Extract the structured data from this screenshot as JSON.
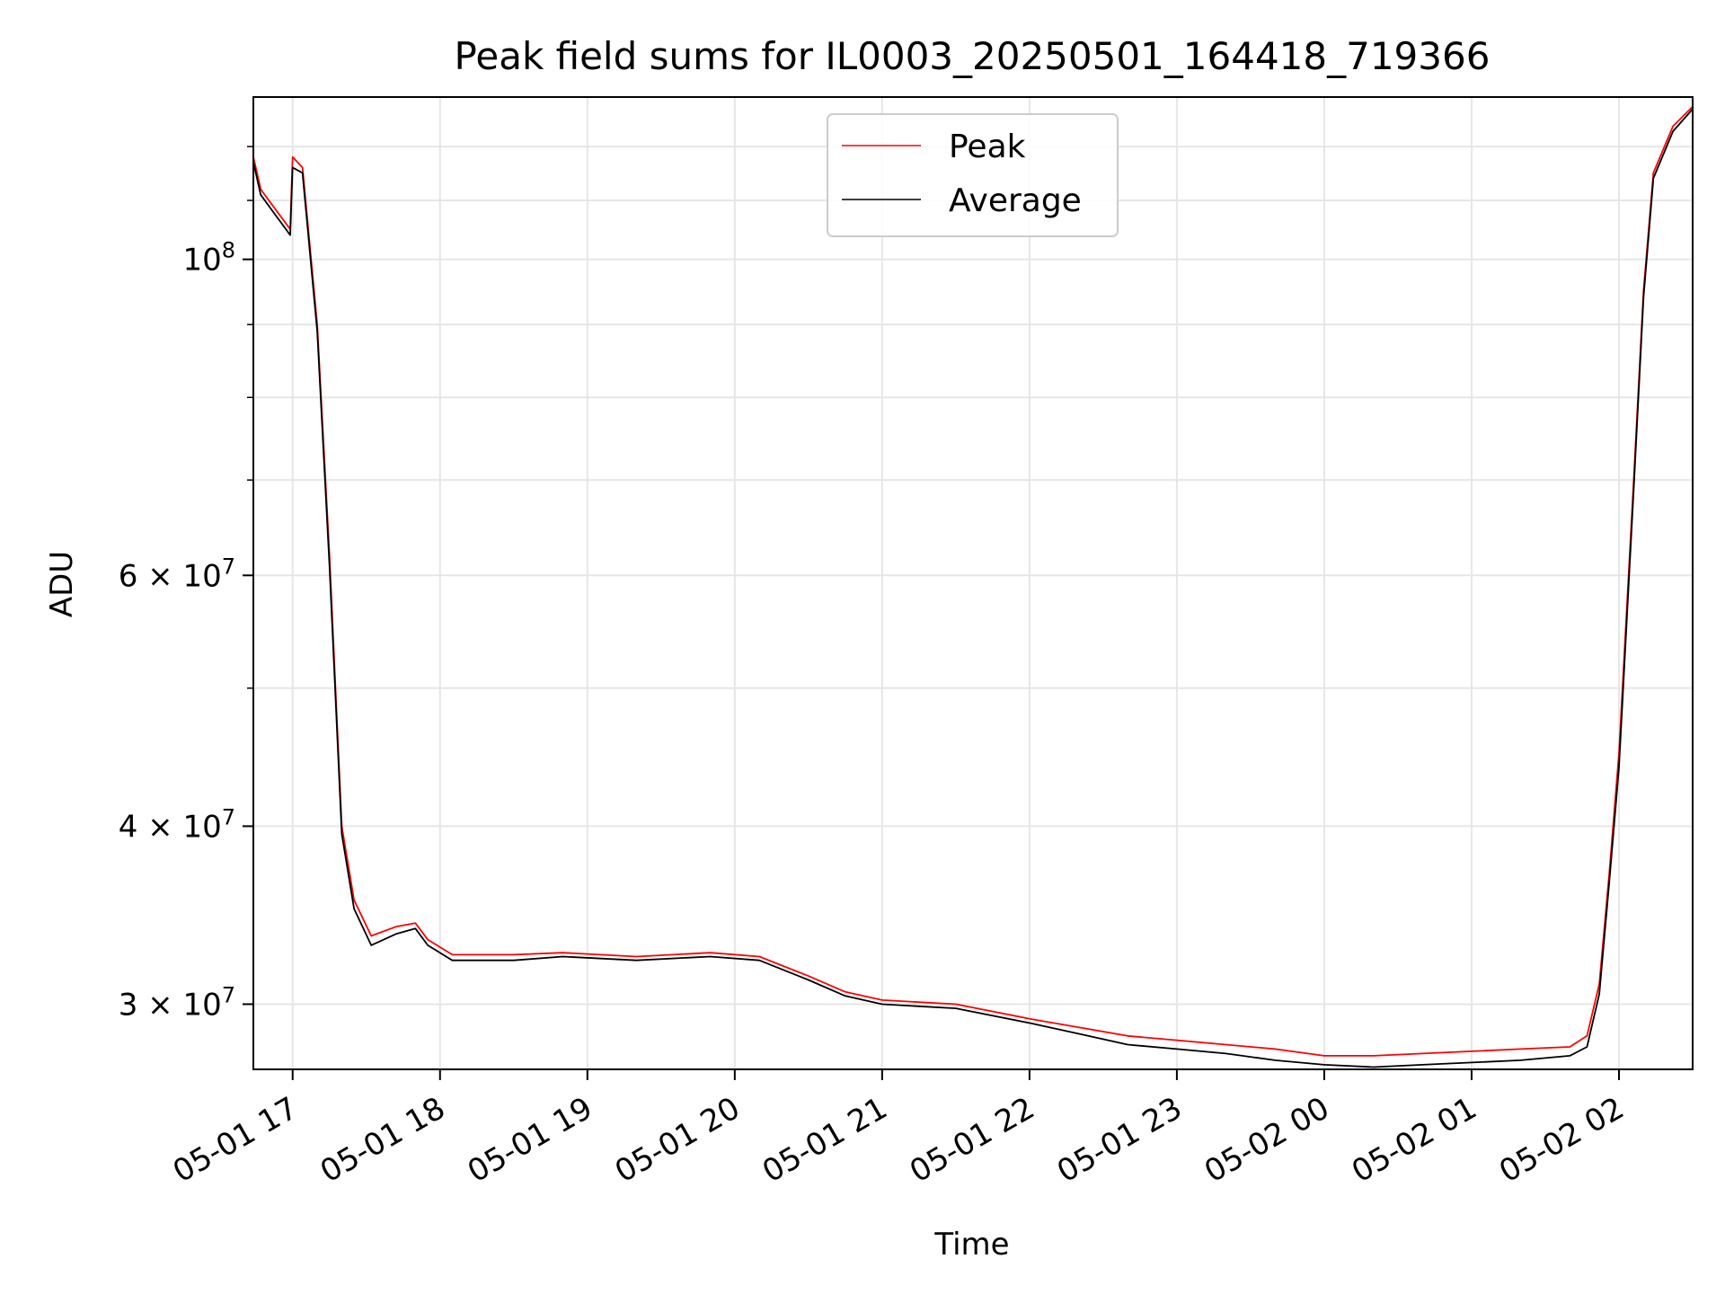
{
  "chart_data": {
    "type": "line",
    "title": "Peak field sums for IL0003_20250501_164418_719366",
    "xlabel": "Time",
    "ylabel": "ADU",
    "yscale": "log",
    "grid": true,
    "legend_position": "upper center",
    "x_ticks": [
      "05-01 17",
      "05-01 18",
      "05-01 19",
      "05-01 20",
      "05-01 21",
      "05-01 22",
      "05-01 23",
      "05-02 00",
      "05-02 01",
      "05-02 02"
    ],
    "y_ticks": [
      {
        "value": 30000000,
        "base": "3 × 10",
        "exp": "7"
      },
      {
        "value": 40000000,
        "base": "4 × 10",
        "exp": "7"
      },
      {
        "value": 60000000,
        "base": "6 × 10",
        "exp": "7"
      },
      {
        "value": 100000000,
        "base": "10",
        "exp": "8"
      }
    ],
    "xlim": [
      "2025-05-01 16:44",
      "2025-05-02 02:30"
    ],
    "ylim": [
      27000000,
      130000000
    ],
    "series": [
      {
        "name": "Peak",
        "color": "#ff0000",
        "points": [
          [
            "2025-05-01 16:44",
            118000000
          ],
          [
            "2025-05-01 16:47",
            112000000
          ],
          [
            "2025-05-01 16:52",
            109000000
          ],
          [
            "2025-05-01 16:59",
            105000000
          ],
          [
            "2025-05-01 17:00",
            118000000
          ],
          [
            "2025-05-01 17:04",
            116000000
          ],
          [
            "2025-05-01 17:10",
            90000000
          ],
          [
            "2025-05-01 17:15",
            62000000
          ],
          [
            "2025-05-01 17:20",
            40000000
          ],
          [
            "2025-05-01 17:25",
            35500000
          ],
          [
            "2025-05-01 17:32",
            33500000
          ],
          [
            "2025-05-01 17:42",
            34000000
          ],
          [
            "2025-05-01 17:50",
            34200000
          ],
          [
            "2025-05-01 17:55",
            33300000
          ],
          [
            "2025-05-01 18:05",
            32500000
          ],
          [
            "2025-05-01 18:30",
            32500000
          ],
          [
            "2025-05-01 18:50",
            32600000
          ],
          [
            "2025-05-01 19:20",
            32400000
          ],
          [
            "2025-05-01 19:50",
            32600000
          ],
          [
            "2025-05-01 20:10",
            32400000
          ],
          [
            "2025-05-01 20:30",
            31400000
          ],
          [
            "2025-05-01 20:45",
            30600000
          ],
          [
            "2025-05-01 21:00",
            30200000
          ],
          [
            "2025-05-01 21:30",
            30000000
          ],
          [
            "2025-05-01 22:00",
            29300000
          ],
          [
            "2025-05-01 22:20",
            28900000
          ],
          [
            "2025-05-01 22:40",
            28500000
          ],
          [
            "2025-05-01 23:00",
            28300000
          ],
          [
            "2025-05-01 23:20",
            28100000
          ],
          [
            "2025-05-01 23:40",
            27900000
          ],
          [
            "2025-05-02 00:00",
            27600000
          ],
          [
            "2025-05-02 00:20",
            27600000
          ],
          [
            "2025-05-02 00:40",
            27700000
          ],
          [
            "2025-05-02 01:00",
            27800000
          ],
          [
            "2025-05-02 01:20",
            27900000
          ],
          [
            "2025-05-02 01:40",
            28000000
          ],
          [
            "2025-05-02 01:47",
            28500000
          ],
          [
            "2025-05-02 01:52",
            31000000
          ],
          [
            "2025-05-02 01:56",
            37000000
          ],
          [
            "2025-05-02 02:00",
            45000000
          ],
          [
            "2025-05-02 02:06",
            70000000
          ],
          [
            "2025-05-02 02:10",
            95000000
          ],
          [
            "2025-05-02 02:14",
            115000000
          ],
          [
            "2025-05-02 02:22",
            124000000
          ],
          [
            "2025-05-02 02:30",
            128000000
          ]
        ]
      },
      {
        "name": "Average",
        "color": "#000000",
        "points": [
          [
            "2025-05-01 16:44",
            117000000
          ],
          [
            "2025-05-01 16:47",
            111000000
          ],
          [
            "2025-05-01 16:52",
            108000000
          ],
          [
            "2025-05-01 16:59",
            104000000
          ],
          [
            "2025-05-01 17:00",
            116000000
          ],
          [
            "2025-05-01 17:04",
            115000000
          ],
          [
            "2025-05-01 17:10",
            89000000
          ],
          [
            "2025-05-01 17:15",
            61000000
          ],
          [
            "2025-05-01 17:20",
            39500000
          ],
          [
            "2025-05-01 17:25",
            35000000
          ],
          [
            "2025-05-01 17:32",
            33000000
          ],
          [
            "2025-05-01 17:42",
            33600000
          ],
          [
            "2025-05-01 17:50",
            33900000
          ],
          [
            "2025-05-01 17:55",
            33000000
          ],
          [
            "2025-05-01 18:05",
            32200000
          ],
          [
            "2025-05-01 18:30",
            32200000
          ],
          [
            "2025-05-01 18:50",
            32400000
          ],
          [
            "2025-05-01 19:20",
            32200000
          ],
          [
            "2025-05-01 19:50",
            32400000
          ],
          [
            "2025-05-01 20:10",
            32200000
          ],
          [
            "2025-05-01 20:30",
            31200000
          ],
          [
            "2025-05-01 20:45",
            30400000
          ],
          [
            "2025-05-01 21:00",
            30000000
          ],
          [
            "2025-05-01 21:30",
            29800000
          ],
          [
            "2025-05-01 22:00",
            29100000
          ],
          [
            "2025-05-01 22:20",
            28600000
          ],
          [
            "2025-05-01 22:40",
            28100000
          ],
          [
            "2025-05-01 23:00",
            27900000
          ],
          [
            "2025-05-01 23:20",
            27700000
          ],
          [
            "2025-05-01 23:40",
            27400000
          ],
          [
            "2025-05-02 00:00",
            27200000
          ],
          [
            "2025-05-02 00:20",
            27100000
          ],
          [
            "2025-05-02 00:40",
            27200000
          ],
          [
            "2025-05-02 01:00",
            27300000
          ],
          [
            "2025-05-02 01:20",
            27400000
          ],
          [
            "2025-05-02 01:40",
            27600000
          ],
          [
            "2025-05-02 01:47",
            28000000
          ],
          [
            "2025-05-02 01:52",
            30500000
          ],
          [
            "2025-05-02 01:56",
            36500000
          ],
          [
            "2025-05-02 02:00",
            44000000
          ],
          [
            "2025-05-02 02:06",
            69000000
          ],
          [
            "2025-05-02 02:10",
            94000000
          ],
          [
            "2025-05-02 02:14",
            114000000
          ],
          [
            "2025-05-02 02:22",
            123000000
          ],
          [
            "2025-05-02 02:30",
            127500000
          ]
        ]
      }
    ]
  }
}
